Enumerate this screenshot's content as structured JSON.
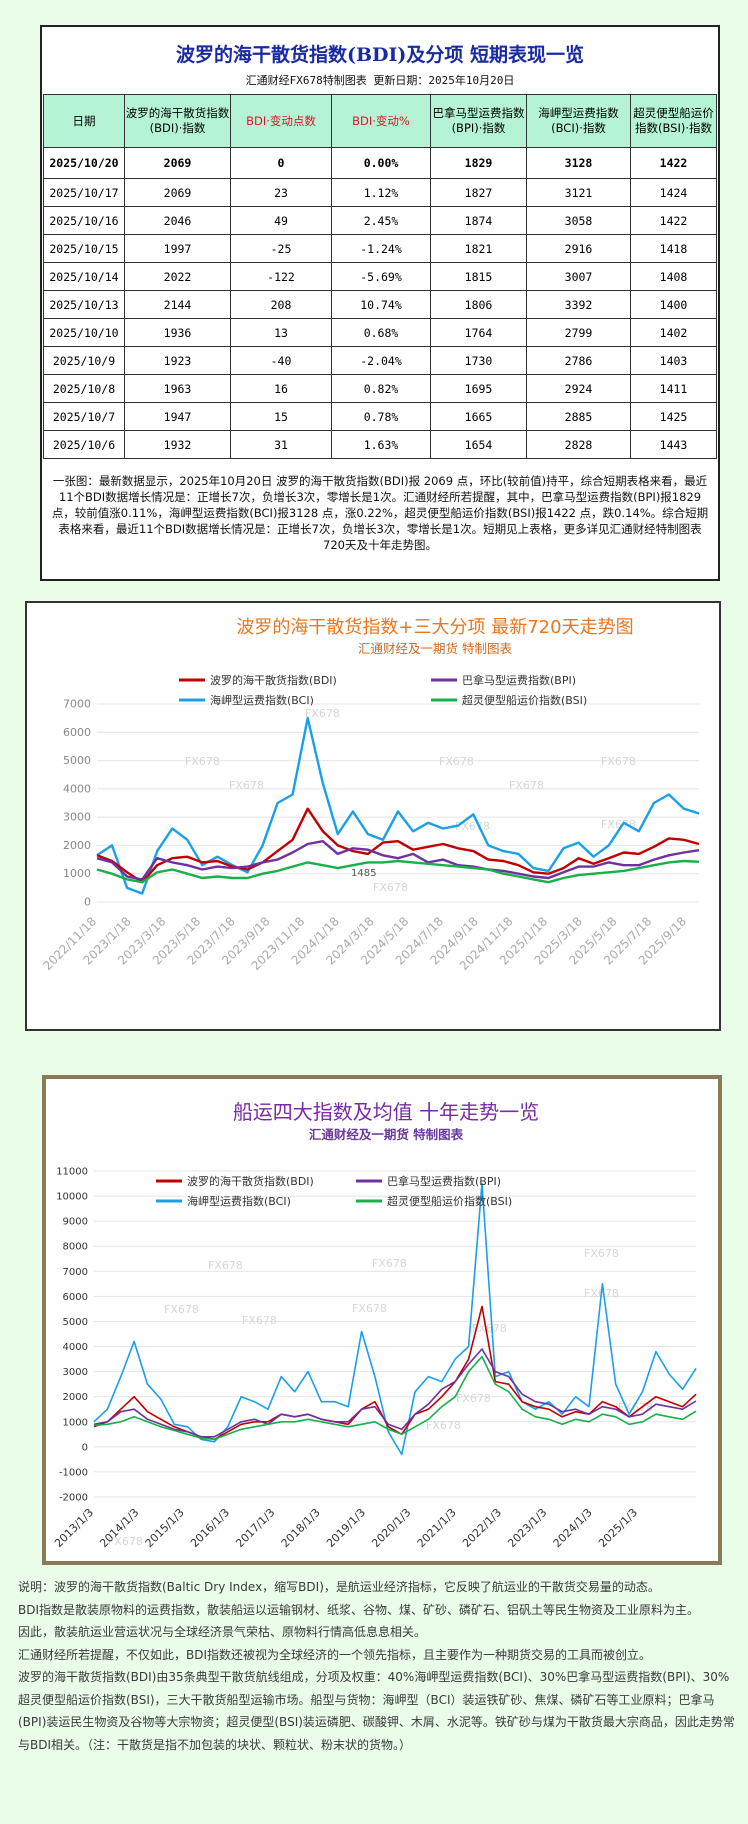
{
  "table_section": {
    "title": "波罗的海干散货指数(BDI)及分项  短期表现一览",
    "subtitle": "汇通财经FX678特制图表     更新日期：2025年10月20日",
    "headers": [
      "日期",
      "波罗的海干散货指数(BDI)·指数",
      "BDI·变动点数",
      "BDI·变动%",
      "巴拿马型运费指数(BPI)·指数",
      "海岬型运费指数(BCI)·指数",
      "超灵便型船运价指数(BSI)·指数"
    ],
    "rows": [
      [
        "2025/10/20",
        "2069",
        "0",
        "0.00%",
        "1829",
        "3128",
        "1422"
      ],
      [
        "2025/10/17",
        "2069",
        "23",
        "1.12%",
        "1827",
        "3121",
        "1424"
      ],
      [
        "2025/10/16",
        "2046",
        "49",
        "2.45%",
        "1874",
        "3058",
        "1422"
      ],
      [
        "2025/10/15",
        "1997",
        "-25",
        "-1.24%",
        "1821",
        "2916",
        "1418"
      ],
      [
        "2025/10/14",
        "2022",
        "-122",
        "-5.69%",
        "1815",
        "3007",
        "1408"
      ],
      [
        "2025/10/13",
        "2144",
        "208",
        "10.74%",
        "1806",
        "3392",
        "1400"
      ],
      [
        "2025/10/10",
        "1936",
        "13",
        "0.68%",
        "1764",
        "2799",
        "1402"
      ],
      [
        "2025/10/9",
        "1923",
        "-40",
        "-2.04%",
        "1730",
        "2786",
        "1403"
      ],
      [
        "2025/10/8",
        "1963",
        "16",
        "0.82%",
        "1695",
        "2924",
        "1411"
      ],
      [
        "2025/10/7",
        "1947",
        "15",
        "0.78%",
        "1665",
        "2885",
        "1425"
      ],
      [
        "2025/10/6",
        "1932",
        "31",
        "1.63%",
        "1654",
        "2828",
        "1443"
      ]
    ],
    "note": "一张图：最新数据显示，2025年10月20日 波罗的海干散货指数(BDI)报 2069 点，环比(较前值)持平，综合短期表格来看，最近11个BDI数据增长情况是：正增长7次，负增长3次，零增长是1次。汇通财经所若提醒，其中，巴拿马型运费指数(BPI)报1829 点，较前值涨0.11%，海岬型运费指数(BCI)报3128 点，涨0.22%，超灵便型船运价指数(BSI)报1422 点，跌0.14%。综合短期表格来看，最近11个BDI数据增长情况是：正增长7次，负增长3次，零增长是1次。短期见上表格，更多详见汇通财经特制图表720天及十年走势图。"
  },
  "chart_data": [
    {
      "type": "line",
      "title": "波罗的海干散货指数+三大分项  最新720天走势图",
      "subtitle": "汇通财经及一期货  特制图表",
      "watermark": "FX678",
      "ylim": [
        0,
        7000
      ],
      "y_ticks": [
        "0",
        "1000",
        "2000",
        "3000",
        "4000",
        "5000",
        "6000",
        "7000"
      ],
      "x_labels": [
        "2022/11/18",
        "2023/1/18",
        "2023/3/18",
        "2023/5/18",
        "2023/7/18",
        "2023/9/18",
        "2023/11/18",
        "2024/1/18",
        "2024/3/18",
        "2024/5/18",
        "2024/7/18",
        "2024/9/18",
        "2024/11/18",
        "2025/1/18",
        "2025/3/18",
        "2025/5/18",
        "2025/7/18",
        "2025/9/18"
      ],
      "annotation": "1485",
      "legend_position": "top",
      "series": [
        {
          "name": "波罗的海干散货指数(BDI)",
          "color": "#c00000",
          "values": [
            1650,
            1450,
            1050,
            700,
            1300,
            1550,
            1600,
            1400,
            1450,
            1250,
            1150,
            1400,
            1800,
            2200,
            3300,
            2500,
            2000,
            1800,
            1700,
            2100,
            2150,
            1850,
            1950,
            2050,
            1900,
            1800,
            1500,
            1450,
            1300,
            1050,
            1000,
            1200,
            1550,
            1350,
            1550,
            1750,
            1700,
            1950,
            2250,
            2200,
            2050
          ]
        },
        {
          "name": "巴拿马型运费指数(BPI)",
          "color": "#7030a0",
          "values": [
            1550,
            1400,
            900,
            800,
            1550,
            1400,
            1300,
            1150,
            1250,
            1200,
            1250,
            1400,
            1500,
            1750,
            2050,
            2150,
            1700,
            1900,
            1850,
            1650,
            1550,
            1700,
            1400,
            1500,
            1300,
            1250,
            1150,
            1100,
            1000,
            900,
            850,
            1050,
            1250,
            1250,
            1400,
            1300,
            1300,
            1500,
            1650,
            1750,
            1830
          ]
        },
        {
          "name": "海岬型运费指数(BCI)",
          "color": "#1aa0e8",
          "values": [
            1650,
            2000,
            500,
            300,
            1800,
            2600,
            2200,
            1300,
            1600,
            1300,
            1050,
            2000,
            3500,
            3800,
            6500,
            4200,
            2400,
            3200,
            2400,
            2200,
            3200,
            2500,
            2800,
            2600,
            2700,
            3100,
            2000,
            1800,
            1700,
            1200,
            1100,
            1900,
            2100,
            1600,
            2000,
            2800,
            2500,
            3500,
            3800,
            3300,
            3130
          ]
        },
        {
          "name": "超灵便型船运价指数(BSI)",
          "color": "#17b04a",
          "values": [
            1150,
            1000,
            800,
            700,
            1050,
            1150,
            1000,
            850,
            900,
            850,
            850,
            1000,
            1100,
            1250,
            1400,
            1300,
            1200,
            1300,
            1400,
            1400,
            1450,
            1400,
            1350,
            1300,
            1250,
            1200,
            1150,
            1000,
            900,
            800,
            700,
            850,
            950,
            1000,
            1050,
            1100,
            1200,
            1300,
            1400,
            1450,
            1420
          ]
        }
      ]
    },
    {
      "type": "line",
      "title": "船运四大指数及均值 十年走势一览",
      "subtitle": "汇通财经及一期货 特制图表",
      "watermark": "FX678",
      "ylim": [
        -2000,
        11000
      ],
      "y_ticks": [
        "-2000",
        "-1000",
        "0",
        "1000",
        "2000",
        "3000",
        "4000",
        "5000",
        "6000",
        "7000",
        "8000",
        "9000",
        "10000",
        "11000"
      ],
      "x_labels": [
        "2013/1/3",
        "2014/1/3",
        "2015/1/3",
        "2016/1/3",
        "2017/1/3",
        "2018/1/3",
        "2019/1/3",
        "2020/1/3",
        "2021/1/3",
        "2022/1/3",
        "2023/1/3",
        "2024/1/3",
        "2025/1/3"
      ],
      "legend_position": "top",
      "series": [
        {
          "name": "波罗的海干散货指数(BDI)",
          "color": "#c00000",
          "values": [
            800,
            1000,
            1500,
            2000,
            1400,
            1100,
            800,
            600,
            400,
            300,
            600,
            900,
            1000,
            1000,
            1300,
            1200,
            1300,
            1100,
            1000,
            900,
            1500,
            1800,
            800,
            500,
            1300,
            1500,
            2000,
            2600,
            3500,
            5600,
            2600,
            2500,
            1800,
            1600,
            1500,
            1200,
            1400,
            1300,
            1800,
            1600,
            1200,
            1600,
            2000,
            1800,
            1600,
            2100
          ]
        },
        {
          "name": "巴拿马型运费指数(BPI)",
          "color": "#7030a0",
          "values": [
            900,
            1000,
            1400,
            1500,
            1100,
            900,
            700,
            600,
            400,
            400,
            700,
            1000,
            1100,
            900,
            1300,
            1200,
            1300,
            1100,
            1000,
            1000,
            1500,
            1600,
            900,
            700,
            1300,
            1700,
            2300,
            2600,
            3300,
            3900,
            3000,
            2800,
            2100,
            1800,
            1700,
            1400,
            1500,
            1300,
            1600,
            1500,
            1200,
            1300,
            1700,
            1600,
            1500,
            1830
          ]
        },
        {
          "name": "海岬型运费指数(BCI)",
          "color": "#1aa0e8",
          "values": [
            1000,
            1500,
            2800,
            4200,
            2500,
            1900,
            900,
            800,
            300,
            200,
            800,
            2000,
            1800,
            1500,
            2800,
            2200,
            3000,
            1800,
            1800,
            1600,
            4600,
            2800,
            600,
            -300,
            2200,
            2800,
            2600,
            3500,
            4000,
            10500,
            2800,
            3000,
            1800,
            1500,
            1800,
            1300,
            2000,
            1600,
            6500,
            2500,
            1300,
            2200,
            3800,
            2900,
            2300,
            3130
          ]
        },
        {
          "name": "超灵便型船运价指数(BSI)",
          "color": "#17b04a",
          "values": [
            850,
            900,
            1000,
            1200,
            1000,
            800,
            650,
            500,
            350,
            300,
            500,
            700,
            800,
            900,
            1000,
            1000,
            1100,
            1000,
            900,
            800,
            900,
            1000,
            700,
            500,
            800,
            1100,
            1600,
            2000,
            3000,
            3600,
            2500,
            2200,
            1500,
            1200,
            1100,
            900,
            1100,
            1000,
            1300,
            1200,
            900,
            1000,
            1300,
            1200,
            1100,
            1420
          ]
        }
      ]
    }
  ],
  "description": [
    "说明：波罗的海干散货指数(Baltic Dry Index，缩写BDI)，是航运业经济指标，它反映了航运业的干散货交易量的动态。",
    "BDI指数是散装原物料的运费指数，散装船运以运输钢材、纸浆、谷物、煤、矿砂、磷矿石、铝矾土等民生物资及工业原料为主。",
    "因此，散装航运业营运状况与全球经济景气荣枯、原物料行情高低息息相关。",
    "汇通财经所若提醒，不仅如此，BDI指数还被视为全球经济的一个领先指标，且主要作为一种期货交易的工具而被创立。",
    "波罗的海干散货指数(BDI)由35条典型干散货航线组成，分项及权重：40%海岬型运费指数(BCI)、30%巴拿马型运费指数(BPI)、30%超灵便型船运价指数(BSI)，三大干散货船型运输市场。船型与货物：海岬型（BCI）装运铁矿砂、焦煤、磷矿石等工业原料；巴拿马(BPI)装运民生物资及谷物等大宗物资；超灵便型(BSI)装运磷肥、碳酸钾、木屑、水泥等。铁矿砂与煤为干散货最大宗商品，因此走势常与BDI相关。（注：干散货是指不加包装的块状、颗粒状、粉末状的货物。）"
  ]
}
